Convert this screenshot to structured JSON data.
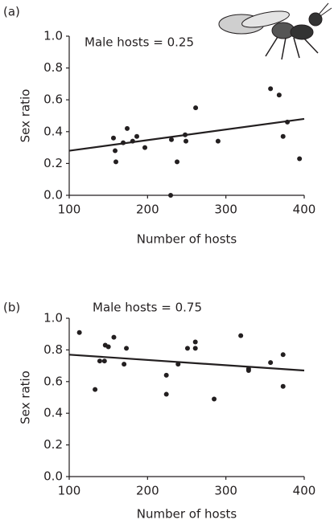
{
  "chart_data": [
    {
      "type": "scatter",
      "panel": "(a)",
      "annotation": "Male hosts = 0.25",
      "x_label": "Number of hosts",
      "y_label": "Sex ratio",
      "color": "#231f20",
      "x": [
        156.5,
        158.6,
        159.6,
        168.9,
        174,
        181,
        186.3,
        196.6,
        230.5,
        229.5,
        237.7,
        248,
        249,
        261.4,
        290,
        357,
        368,
        373,
        378.5,
        394
      ],
      "values": [
        0.36,
        0.28,
        0.21,
        0.33,
        0.42,
        0.34,
        0.37,
        0.3,
        0.35,
        0,
        0.21,
        0.38,
        0.34,
        0.55,
        0.34,
        0.67,
        0.63,
        0.37,
        0.46,
        0.23
      ],
      "trend": {
        "x": [
          100,
          400
        ],
        "values": [
          0.28,
          0.48
        ]
      },
      "xlim": [
        100,
        400
      ],
      "xticks": [
        100,
        200,
        300,
        400
      ],
      "ylim": [
        0,
        1
      ],
      "yticks": [
        {
          "value": 0,
          "label": "0.0"
        },
        0.2,
        0.4,
        0.6,
        0.8,
        {
          "value": 1,
          "label": "1.0"
        }
      ]
    },
    {
      "type": "scatter",
      "panel": "(b)",
      "annotation": "Male hosts = 0.75",
      "x_label": "Number of hosts",
      "y_label": "Sex ratio",
      "color": "#231f20",
      "x": [
        113,
        133,
        139,
        145,
        146,
        150,
        157,
        170,
        173,
        224,
        224,
        239,
        251,
        261,
        261,
        285,
        319,
        329,
        329,
        357,
        373,
        373
      ],
      "values": [
        0.91,
        0.55,
        0.73,
        0.73,
        0.83,
        0.82,
        0.88,
        0.71,
        0.81,
        0.64,
        0.52,
        0.71,
        0.81,
        0.81,
        0.85,
        0.49,
        0.89,
        0.68,
        0.67,
        0.72,
        0.77,
        0.57
      ],
      "trend": {
        "x": [
          100,
          400
        ],
        "values": [
          0.77,
          0.67
        ]
      },
      "xlim": [
        100,
        400
      ],
      "xticks": [
        100,
        200,
        300,
        400
      ],
      "ylim": [
        0,
        1
      ],
      "yticks": [
        {
          "value": 0,
          "label": "0.0"
        },
        0.2,
        0.4,
        0.6,
        0.8,
        {
          "value": 1,
          "label": "1.0"
        }
      ]
    }
  ]
}
